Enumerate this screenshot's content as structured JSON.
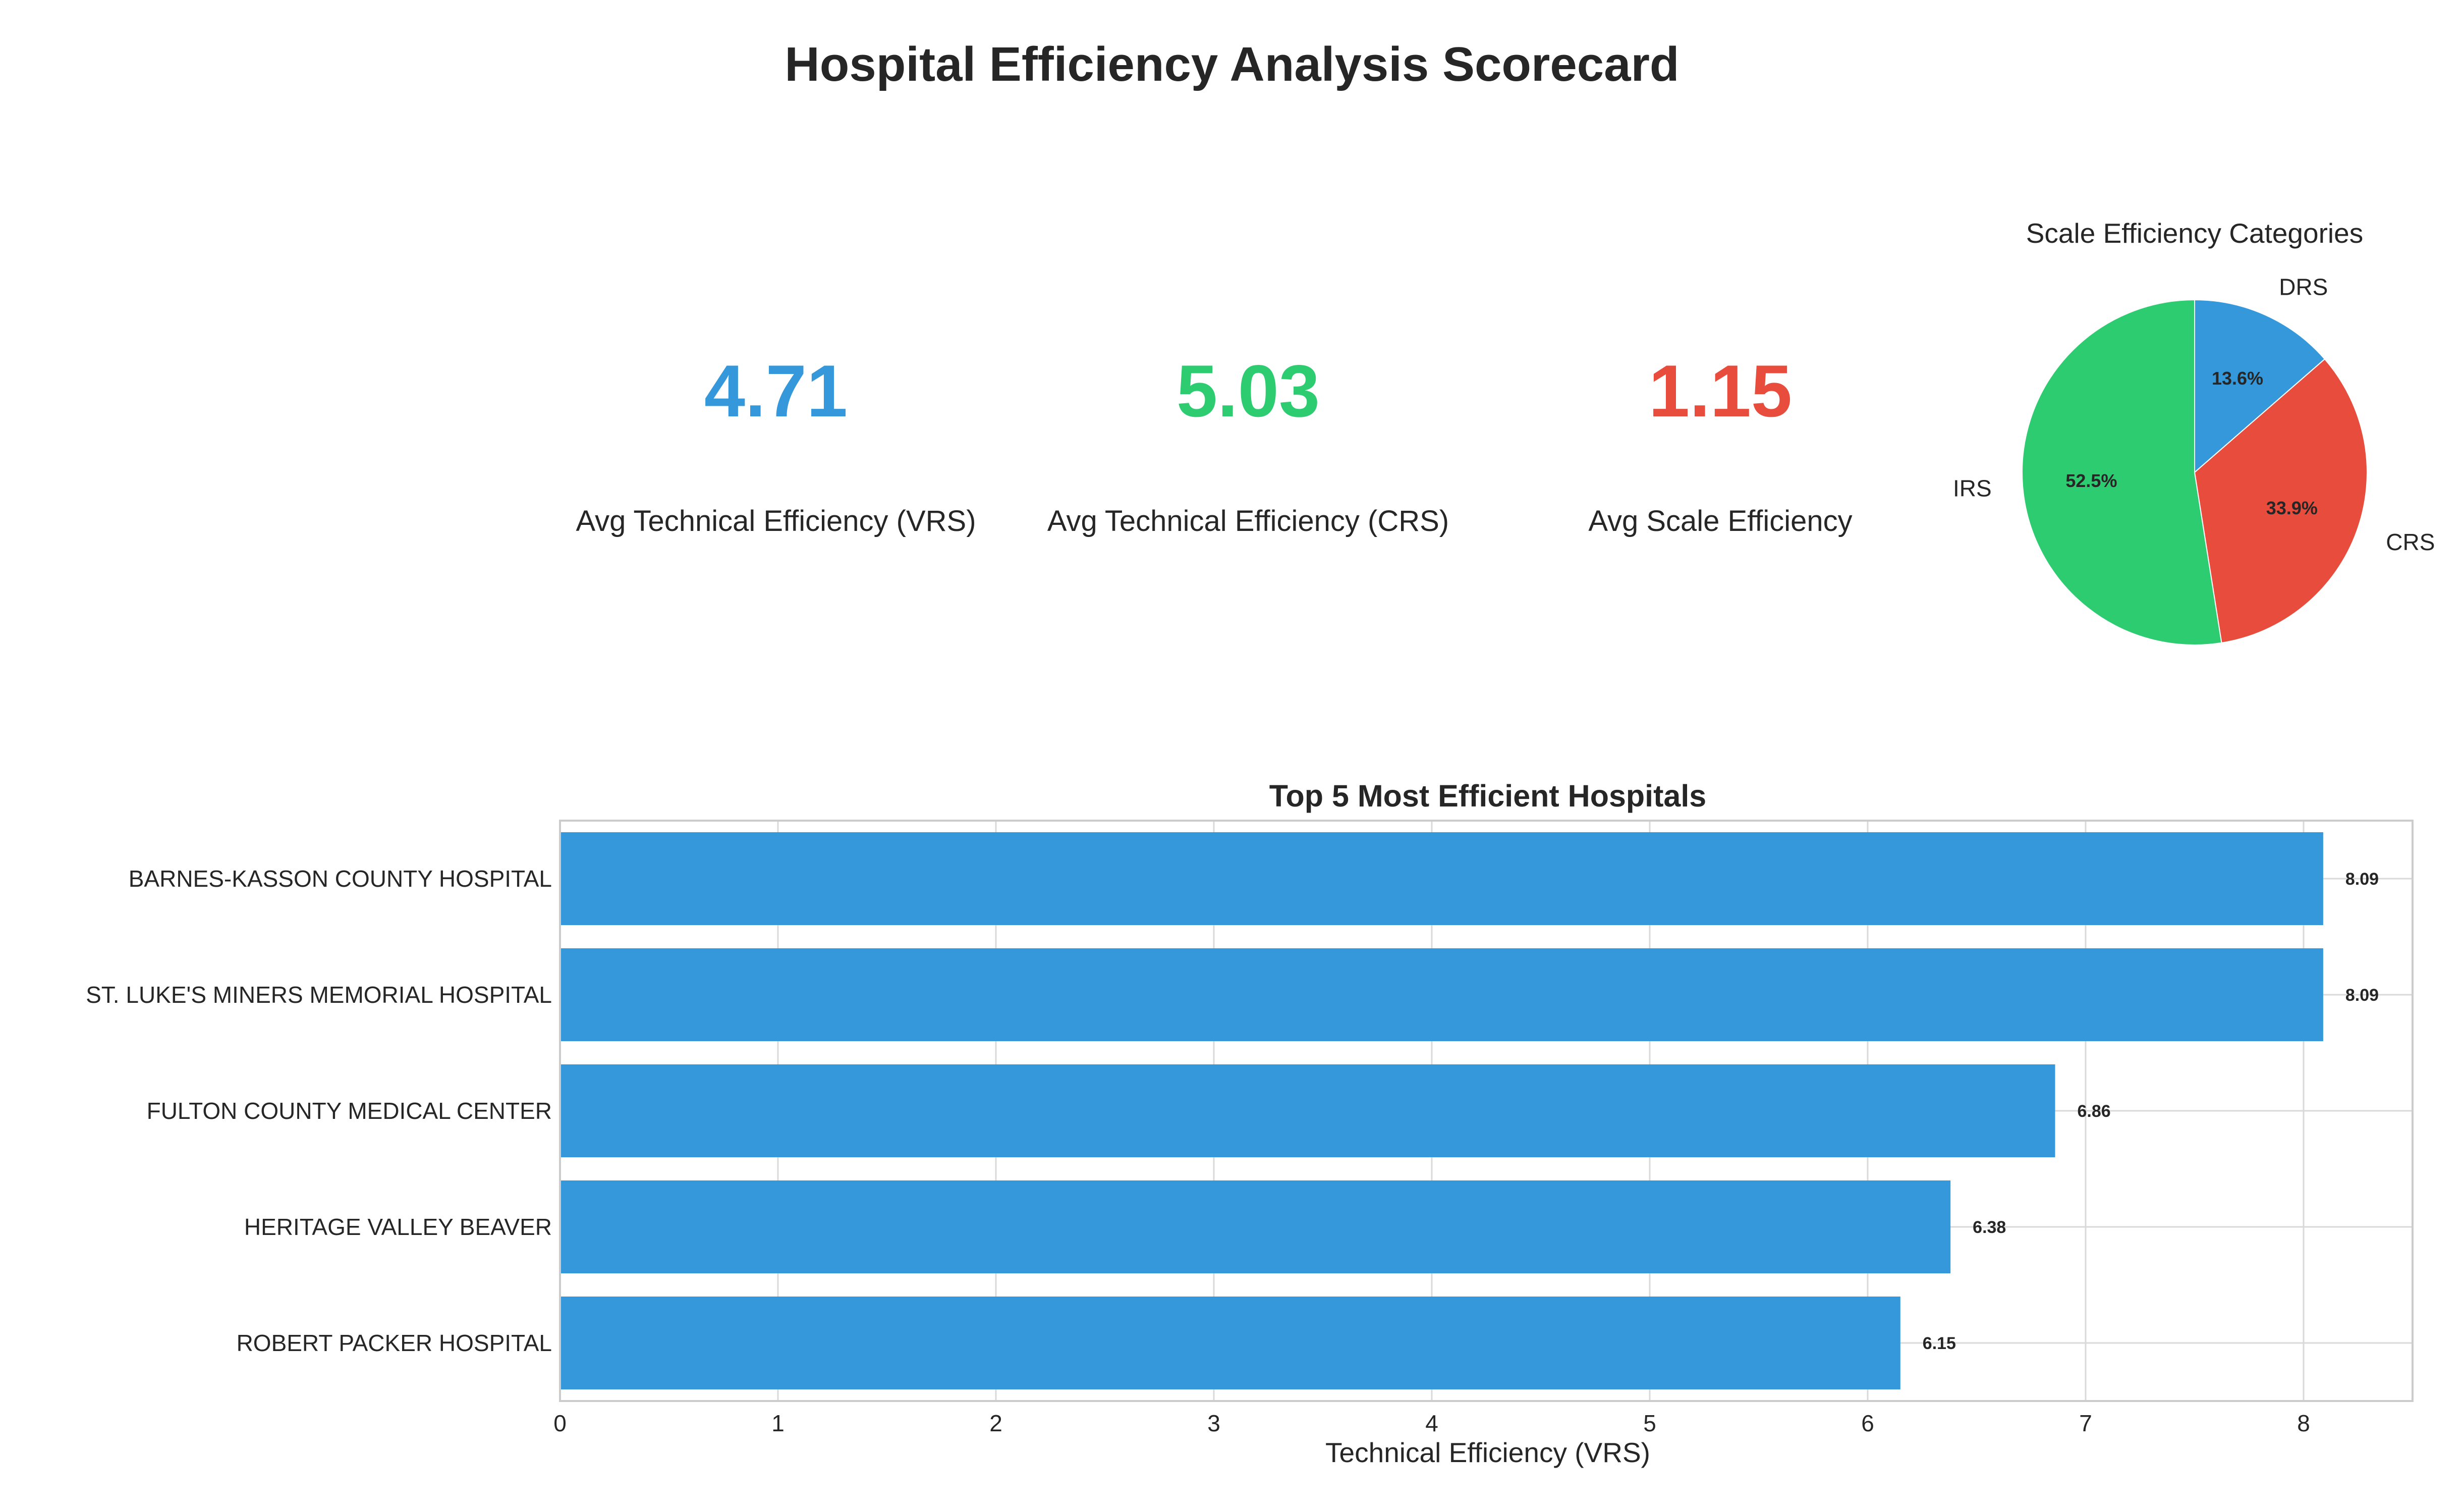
{
  "title": "Hospital Efficiency Analysis Scorecard",
  "kpis": [
    {
      "value": "4.71",
      "label": "Avg Technical Efficiency (VRS)",
      "color": "#3498db"
    },
    {
      "value": "5.03",
      "label": "Avg Technical Efficiency (CRS)",
      "color": "#2ecc71"
    },
    {
      "value": "1.15",
      "label": "Avg Scale Efficiency",
      "color": "#e74c3c"
    }
  ],
  "chart_data": [
    {
      "type": "pie",
      "title": "Scale Efficiency Categories",
      "labels": [
        "DRS",
        "CRS",
        "IRS"
      ],
      "values": [
        13.6,
        33.9,
        52.5
      ],
      "value_labels": [
        "13.6%",
        "33.9%",
        "52.5%"
      ],
      "colors": [
        "#3498db",
        "#e74c3c",
        "#2ecc71"
      ],
      "start_angle": 90,
      "direction": "clockwise"
    },
    {
      "type": "bar",
      "orientation": "horizontal",
      "title": "Top 5 Most Efficient Hospitals",
      "categories": [
        "BARNES-KASSON COUNTY HOSPITAL",
        "ST. LUKE'S MINERS MEMORIAL HOSPITAL",
        "FULTON COUNTY MEDICAL CENTER",
        "HERITAGE VALLEY BEAVER",
        "ROBERT PACKER HOSPITAL"
      ],
      "values": [
        8.09,
        8.09,
        6.86,
        6.38,
        6.15
      ],
      "value_labels": [
        "8.09",
        "8.09",
        "6.86",
        "6.38",
        "6.15"
      ],
      "xlabel": "Technical Efficiency (VRS)",
      "ylabel": "",
      "xlim": [
        0,
        8.5
      ],
      "xticks": [
        0,
        1,
        2,
        3,
        4,
        5,
        6,
        7,
        8
      ],
      "grid": true,
      "bar_color": "#3498db",
      "grid_color": "#d9d9d9",
      "spine_color": "#cccccc"
    }
  ]
}
